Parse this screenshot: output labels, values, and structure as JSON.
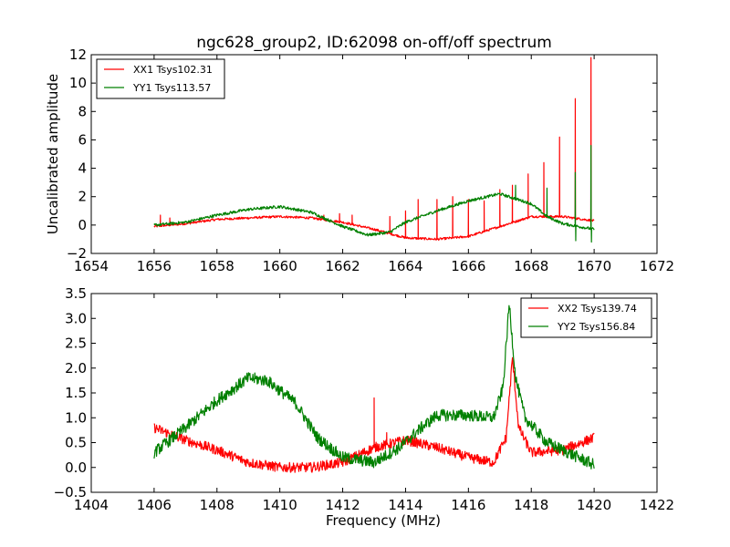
{
  "chart_data": [
    {
      "type": "line",
      "title": "ngc628_group2, ID:62098 on-off/off spectrum",
      "xlabel": "",
      "ylabel": "Uncalibrated amplitude",
      "xlim": [
        1654,
        1672
      ],
      "ylim": [
        -2,
        12
      ],
      "xticks": [
        "1654",
        "1656",
        "1658",
        "1660",
        "1662",
        "1664",
        "1666",
        "1668",
        "1670",
        "1672"
      ],
      "yticks": [
        "−2",
        "0",
        "2",
        "4",
        "6",
        "8",
        "10",
        "12"
      ],
      "legend_position": "upper-left",
      "series": [
        {
          "name": "XX1 Tsys102.31",
          "color": "#ff0000",
          "baseline": [
            [
              1656.0,
              -0.1
            ],
            [
              1657,
              0.1
            ],
            [
              1658,
              0.4
            ],
            [
              1659,
              0.5
            ],
            [
              1660,
              0.6
            ],
            [
              1661,
              0.5
            ],
            [
              1662,
              0.2
            ],
            [
              1663,
              -0.3
            ],
            [
              1664,
              -0.9
            ],
            [
              1665,
              -1.0
            ],
            [
              1666,
              -0.8
            ],
            [
              1667,
              -0.1
            ],
            [
              1668,
              0.6
            ],
            [
              1669,
              0.6
            ],
            [
              1670,
              0.3
            ]
          ],
          "spikes": [
            [
              1656.2,
              0.7
            ],
            [
              1656.5,
              0.5
            ],
            [
              1661.4,
              0.7
            ],
            [
              1661.9,
              0.8
            ],
            [
              1662.3,
              0.7
            ],
            [
              1663.5,
              0.6
            ],
            [
              1664.0,
              1.0
            ],
            [
              1664.4,
              1.8
            ],
            [
              1665.0,
              1.8
            ],
            [
              1665.5,
              2.0
            ],
            [
              1666.0,
              1.8
            ],
            [
              1666.5,
              1.7
            ],
            [
              1667.0,
              2.5
            ],
            [
              1667.4,
              2.8
            ],
            [
              1667.9,
              3.6
            ],
            [
              1668.4,
              4.4
            ],
            [
              1668.9,
              6.2
            ],
            [
              1669.4,
              8.9
            ],
            [
              1669.9,
              11.8
            ]
          ],
          "noise": 0.08
        },
        {
          "name": "YY1 Tsys113.57",
          "color": "#008000",
          "baseline": [
            [
              1656.0,
              0.0
            ],
            [
              1657,
              0.2
            ],
            [
              1658,
              0.7
            ],
            [
              1659,
              1.1
            ],
            [
              1660,
              1.3
            ],
            [
              1661,
              0.9
            ],
            [
              1662,
              -0.1
            ],
            [
              1662.8,
              -0.7
            ],
            [
              1663.5,
              -0.5
            ],
            [
              1664,
              0.2
            ],
            [
              1665,
              1.0
            ],
            [
              1666,
              1.7
            ],
            [
              1667,
              2.2
            ],
            [
              1668,
              1.5
            ],
            [
              1668.5,
              0.6
            ],
            [
              1669,
              0.1
            ],
            [
              1670,
              -0.3
            ]
          ],
          "spikes": [
            [
              1667.5,
              2.8
            ],
            [
              1668.5,
              2.6
            ],
            [
              1669.4,
              3.7
            ],
            [
              1669.9,
              5.6
            ]
          ],
          "dips": [
            [
              1669.4,
              -1.1
            ],
            [
              1669.9,
              -1.2
            ]
          ],
          "noise": 0.1
        }
      ]
    },
    {
      "type": "line",
      "title": "",
      "xlabel": "Frequency (MHz)",
      "ylabel": "",
      "xlim": [
        1404,
        1422
      ],
      "ylim": [
        -0.5,
        3.5
      ],
      "xticks": [
        "1404",
        "1406",
        "1408",
        "1410",
        "1412",
        "1414",
        "1416",
        "1418",
        "1420",
        "1422"
      ],
      "yticks": [
        "−0.5",
        "0.0",
        "0.5",
        "1.0",
        "1.5",
        "2.0",
        "2.5",
        "3.0",
        "3.5"
      ],
      "legend_position": "upper-right",
      "series": [
        {
          "name": "XX2 Tsys139.74",
          "color": "#ff0000",
          "baseline": [
            [
              1406.0,
              0.8
            ],
            [
              1407,
              0.55
            ],
            [
              1408,
              0.35
            ],
            [
              1409,
              0.1
            ],
            [
              1410,
              0.0
            ],
            [
              1411,
              0.0
            ],
            [
              1412,
              0.1
            ],
            [
              1413,
              0.4
            ],
            [
              1414,
              0.55
            ],
            [
              1415,
              0.4
            ],
            [
              1416,
              0.2
            ],
            [
              1416.8,
              0.1
            ],
            [
              1417.2,
              0.6
            ],
            [
              1417.4,
              2.2
            ],
            [
              1417.6,
              0.8
            ],
            [
              1418,
              0.3
            ],
            [
              1419,
              0.35
            ],
            [
              1420,
              0.6
            ]
          ],
          "spikes": [
            [
              1413.0,
              1.4
            ],
            [
              1413.4,
              0.7
            ]
          ],
          "noise": 0.1
        },
        {
          "name": "YY2 Tsys156.84",
          "color": "#008000",
          "baseline": [
            [
              1406.0,
              0.3
            ],
            [
              1407,
              0.8
            ],
            [
              1408,
              1.35
            ],
            [
              1409,
              1.8
            ],
            [
              1409.6,
              1.75
            ],
            [
              1410.5,
              1.3
            ],
            [
              1411.2,
              0.6
            ],
            [
              1412,
              0.2
            ],
            [
              1413,
              0.1
            ],
            [
              1413.8,
              0.4
            ],
            [
              1414.5,
              0.8
            ],
            [
              1415,
              1.05
            ],
            [
              1416,
              1.05
            ],
            [
              1416.8,
              1.0
            ],
            [
              1417.1,
              1.6
            ],
            [
              1417.3,
              3.3
            ],
            [
              1417.5,
              1.8
            ],
            [
              1417.8,
              1.0
            ],
            [
              1418.5,
              0.5
            ],
            [
              1419.5,
              0.2
            ],
            [
              1420,
              0.05
            ]
          ],
          "spikes": [],
          "noise": 0.12
        }
      ]
    }
  ]
}
